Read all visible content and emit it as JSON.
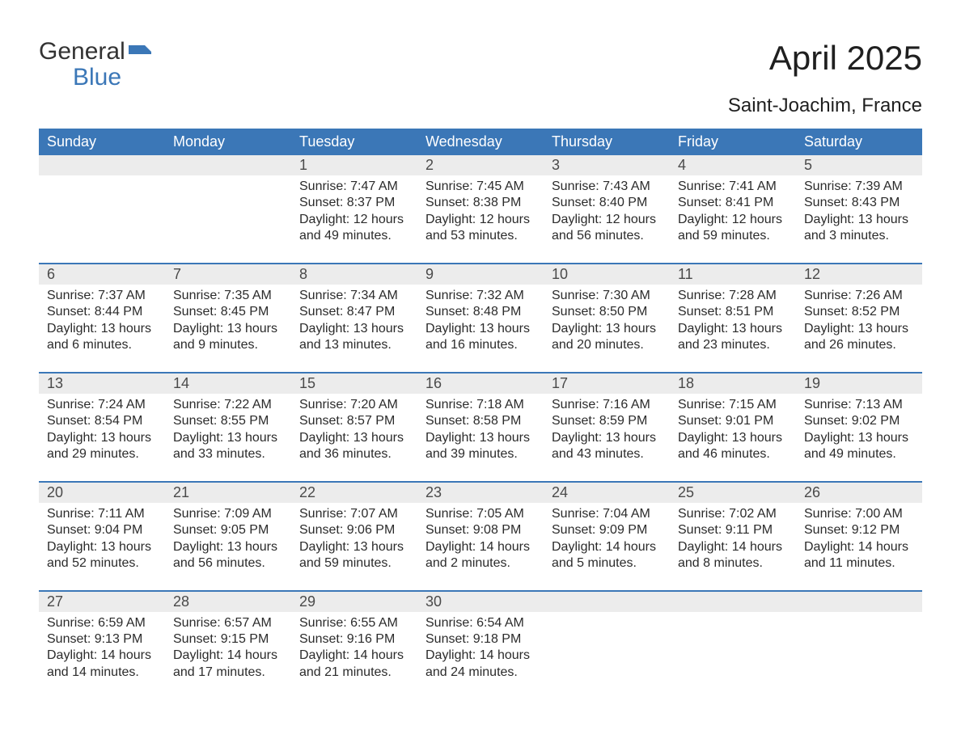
{
  "brand": {
    "general": "General",
    "blue": "Blue"
  },
  "title": "April 2025",
  "location": "Saint-Joachim, France",
  "colors": {
    "header_bg": "#3b77b7",
    "header_text": "#ffffff",
    "daynum_bg": "#ececec",
    "border": "#3b77b7",
    "text": "#2b2b2b",
    "page_bg": "#ffffff"
  },
  "layout": {
    "columns": 7,
    "rows": 5,
    "start_day_index": 2,
    "days_in_month": 30
  },
  "weekday_headers": [
    "Sunday",
    "Monday",
    "Tuesday",
    "Wednesday",
    "Thursday",
    "Friday",
    "Saturday"
  ],
  "days": {
    "1": {
      "sunrise": "7:47 AM",
      "sunset": "8:37 PM",
      "daylight": "12 hours and 49 minutes."
    },
    "2": {
      "sunrise": "7:45 AM",
      "sunset": "8:38 PM",
      "daylight": "12 hours and 53 minutes."
    },
    "3": {
      "sunrise": "7:43 AM",
      "sunset": "8:40 PM",
      "daylight": "12 hours and 56 minutes."
    },
    "4": {
      "sunrise": "7:41 AM",
      "sunset": "8:41 PM",
      "daylight": "12 hours and 59 minutes."
    },
    "5": {
      "sunrise": "7:39 AM",
      "sunset": "8:43 PM",
      "daylight": "13 hours and 3 minutes."
    },
    "6": {
      "sunrise": "7:37 AM",
      "sunset": "8:44 PM",
      "daylight": "13 hours and 6 minutes."
    },
    "7": {
      "sunrise": "7:35 AM",
      "sunset": "8:45 PM",
      "daylight": "13 hours and 9 minutes."
    },
    "8": {
      "sunrise": "7:34 AM",
      "sunset": "8:47 PM",
      "daylight": "13 hours and 13 minutes."
    },
    "9": {
      "sunrise": "7:32 AM",
      "sunset": "8:48 PM",
      "daylight": "13 hours and 16 minutes."
    },
    "10": {
      "sunrise": "7:30 AM",
      "sunset": "8:50 PM",
      "daylight": "13 hours and 20 minutes."
    },
    "11": {
      "sunrise": "7:28 AM",
      "sunset": "8:51 PM",
      "daylight": "13 hours and 23 minutes."
    },
    "12": {
      "sunrise": "7:26 AM",
      "sunset": "8:52 PM",
      "daylight": "13 hours and 26 minutes."
    },
    "13": {
      "sunrise": "7:24 AM",
      "sunset": "8:54 PM",
      "daylight": "13 hours and 29 minutes."
    },
    "14": {
      "sunrise": "7:22 AM",
      "sunset": "8:55 PM",
      "daylight": "13 hours and 33 minutes."
    },
    "15": {
      "sunrise": "7:20 AM",
      "sunset": "8:57 PM",
      "daylight": "13 hours and 36 minutes."
    },
    "16": {
      "sunrise": "7:18 AM",
      "sunset": "8:58 PM",
      "daylight": "13 hours and 39 minutes."
    },
    "17": {
      "sunrise": "7:16 AM",
      "sunset": "8:59 PM",
      "daylight": "13 hours and 43 minutes."
    },
    "18": {
      "sunrise": "7:15 AM",
      "sunset": "9:01 PM",
      "daylight": "13 hours and 46 minutes."
    },
    "19": {
      "sunrise": "7:13 AM",
      "sunset": "9:02 PM",
      "daylight": "13 hours and 49 minutes."
    },
    "20": {
      "sunrise": "7:11 AM",
      "sunset": "9:04 PM",
      "daylight": "13 hours and 52 minutes."
    },
    "21": {
      "sunrise": "7:09 AM",
      "sunset": "9:05 PM",
      "daylight": "13 hours and 56 minutes."
    },
    "22": {
      "sunrise": "7:07 AM",
      "sunset": "9:06 PM",
      "daylight": "13 hours and 59 minutes."
    },
    "23": {
      "sunrise": "7:05 AM",
      "sunset": "9:08 PM",
      "daylight": "14 hours and 2 minutes."
    },
    "24": {
      "sunrise": "7:04 AM",
      "sunset": "9:09 PM",
      "daylight": "14 hours and 5 minutes."
    },
    "25": {
      "sunrise": "7:02 AM",
      "sunset": "9:11 PM",
      "daylight": "14 hours and 8 minutes."
    },
    "26": {
      "sunrise": "7:00 AM",
      "sunset": "9:12 PM",
      "daylight": "14 hours and 11 minutes."
    },
    "27": {
      "sunrise": "6:59 AM",
      "sunset": "9:13 PM",
      "daylight": "14 hours and 14 minutes."
    },
    "28": {
      "sunrise": "6:57 AM",
      "sunset": "9:15 PM",
      "daylight": "14 hours and 17 minutes."
    },
    "29": {
      "sunrise": "6:55 AM",
      "sunset": "9:16 PM",
      "daylight": "14 hours and 21 minutes."
    },
    "30": {
      "sunrise": "6:54 AM",
      "sunset": "9:18 PM",
      "daylight": "14 hours and 24 minutes."
    }
  },
  "labels": {
    "sunrise_prefix": "Sunrise: ",
    "sunset_prefix": "Sunset: ",
    "daylight_prefix": "Daylight: "
  }
}
